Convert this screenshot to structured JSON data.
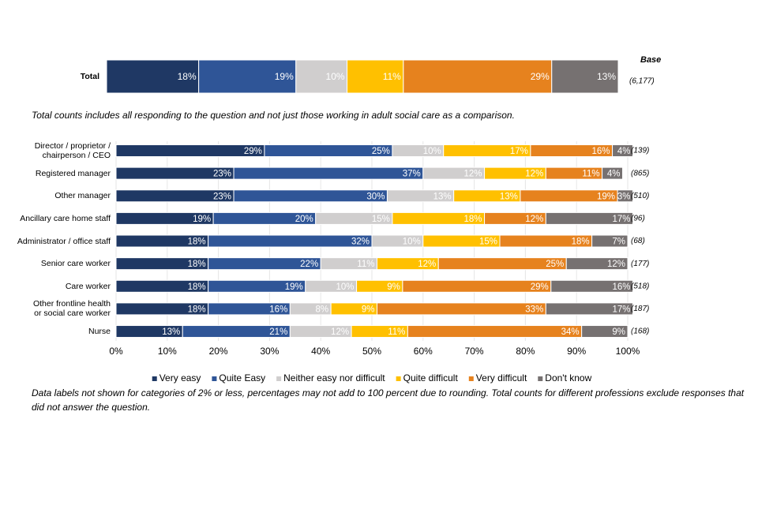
{
  "chart_data": [
    {
      "type": "bar",
      "orientation": "horizontal",
      "stacked": true,
      "categories": [
        "Total"
      ],
      "xlim": [
        0,
        100
      ],
      "series": [
        {
          "color": "#1f3864",
          "values": [
            18
          ],
          "value_labels": [
            "18%"
          ]
        },
        {
          "color": "#2f5597",
          "values": [
            19
          ],
          "value_labels": [
            "19%"
          ]
        },
        {
          "color": "#d0cece",
          "values": [
            10
          ],
          "value_labels": [
            "10%"
          ]
        },
        {
          "color": "#ffc000",
          "values": [
            11
          ],
          "value_labels": [
            "11%"
          ]
        },
        {
          "color": "#e6821e",
          "values": [
            29
          ],
          "value_labels": [
            "29%"
          ]
        },
        {
          "color": "#767171",
          "values": [
            13
          ],
          "value_labels": [
            "13%"
          ]
        }
      ],
      "base_title": "Base",
      "bases": [
        "(6,177)"
      ],
      "note": "Total counts includes all responding to the question and not just those working in adult social care as a comparison."
    },
    {
      "type": "bar",
      "orientation": "horizontal",
      "stacked": true,
      "categories": [
        "Director / proprietor /\nchairperson / CEO",
        "Registered manager",
        "Other manager",
        "Ancillary care home staff",
        "Administrator / office staff",
        "Senior care worker",
        "Care worker",
        "Other frontline health\nor social care worker",
        "Nurse"
      ],
      "xlim": [
        0,
        100
      ],
      "xticks": [
        {
          "value": 0,
          "label": "0%"
        },
        {
          "value": 10,
          "label": "10%"
        },
        {
          "value": 20,
          "label": "20%"
        },
        {
          "value": 30,
          "label": "30%"
        },
        {
          "value": 40,
          "label": "40%"
        },
        {
          "value": 50,
          "label": "50%"
        },
        {
          "value": 60,
          "label": "60%"
        },
        {
          "value": 70,
          "label": "70%"
        },
        {
          "value": 80,
          "label": "80%"
        },
        {
          "value": 90,
          "label": "90%"
        },
        {
          "value": 100,
          "label": "100%"
        }
      ],
      "grid": true,
      "series": [
        {
          "name": "Very easy",
          "color": "#1f3864",
          "values": [
            29,
            23,
            23,
            19,
            18,
            18,
            18,
            18,
            13
          ],
          "value_labels": [
            "29%",
            "23%",
            "23%",
            "19%",
            "18%",
            "18%",
            "18%",
            "18%",
            "13%"
          ]
        },
        {
          "name": "Quite Easy",
          "color": "#2f5597",
          "values": [
            25,
            37,
            30,
            20,
            32,
            22,
            19,
            16,
            21
          ],
          "value_labels": [
            "25%",
            "37%",
            "30%",
            "20%",
            "32%",
            "22%",
            "19%",
            "16%",
            "21%"
          ]
        },
        {
          "name": "Neither easy nor difficult",
          "color": "#d0cece",
          "values": [
            10,
            12,
            13,
            15,
            10,
            11,
            10,
            8,
            12
          ],
          "value_labels": [
            "10%",
            "12%",
            "13%",
            "15%",
            "10%",
            "11%",
            "10%",
            "8%",
            "12%"
          ]
        },
        {
          "name": "Quite difficult",
          "color": "#ffc000",
          "values": [
            17,
            12,
            13,
            18,
            15,
            12,
            9,
            9,
            11
          ],
          "value_labels": [
            "17%",
            "12%",
            "13%",
            "18%",
            "15%",
            "12%",
            "9%",
            "9%",
            "11%"
          ]
        },
        {
          "name": "Very difficult",
          "color": "#e6821e",
          "values": [
            16,
            11,
            19,
            12,
            18,
            25,
            29,
            33,
            34
          ],
          "value_labels": [
            "16%",
            "11%",
            "19%",
            "12%",
            "18%",
            "25%",
            "29%",
            "33%",
            "34%"
          ]
        },
        {
          "name": "Don't know",
          "color": "#767171",
          "values": [
            4,
            4,
            3,
            17,
            7,
            12,
            16,
            17,
            9
          ],
          "value_labels": [
            "4%",
            "4%",
            "3%",
            "17%",
            "7%",
            "12%",
            "16%",
            "17%",
            "9%"
          ]
        }
      ],
      "bases": [
        "(139)",
        "(865)",
        "(510)",
        "(96)",
        "(68)",
        "(177)",
        "(518)",
        "(187)",
        "(168)"
      ],
      "note": "Data labels not shown for categories of 2% or less, percentages may not add to 100 percent due to rounding. Total counts for different professions exclude responses that did not answer the question."
    }
  ]
}
